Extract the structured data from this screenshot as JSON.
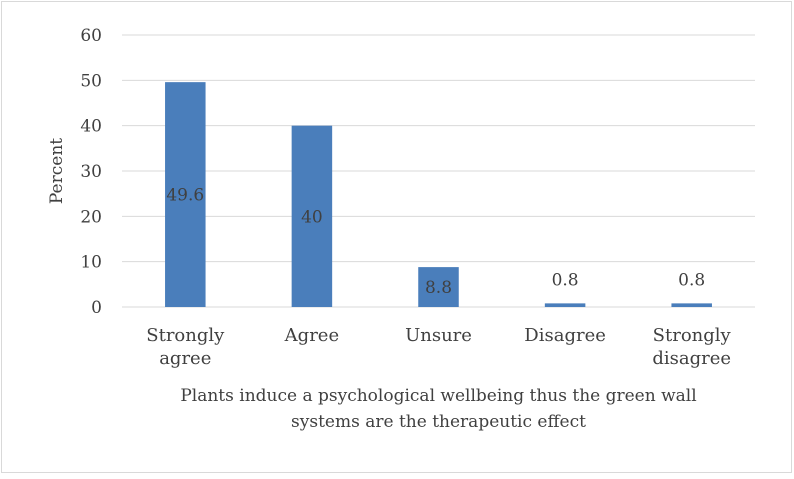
{
  "chart_data": {
    "type": "bar",
    "categories": [
      [
        "Strongly",
        "agree"
      ],
      [
        "Agree"
      ],
      [
        "Unsure"
      ],
      [
        "Disagree"
      ],
      [
        "Strongly",
        "disagree"
      ]
    ],
    "values": [
      49.6,
      40,
      8.8,
      0.8,
      0.8
    ],
    "data_labels": [
      "49.6",
      "40",
      "8.8",
      "0.8",
      "0.8"
    ],
    "xlabel": [
      "Plants induce a psychological wellbeing thus the green wall",
      "systems are the therapeutic effect"
    ],
    "ylabel": "Percent",
    "ylim": [
      0,
      60
    ],
    "yticks": [
      0,
      10,
      20,
      30,
      40,
      50,
      60
    ],
    "grid": "horizontal",
    "legend": "none",
    "colors": {
      "bar": "#4a7ebb",
      "grid": "#d9d9d9",
      "text": "#404040",
      "border": "#d9d9d9"
    }
  }
}
